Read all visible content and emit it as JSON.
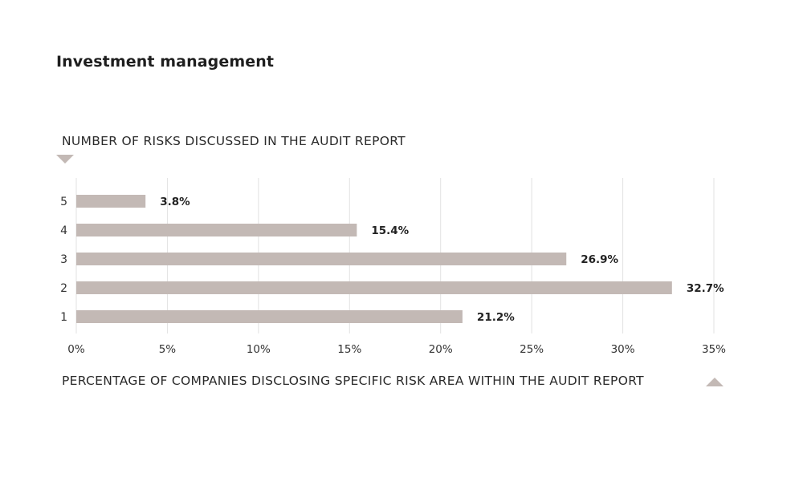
{
  "title": "Investment management",
  "chart_data": {
    "type": "bar",
    "orientation": "horizontal",
    "title": "Investment management",
    "ylabel": "NUMBER OF RISKS DISCUSSED IN THE AUDIT REPORT",
    "xlabel": "PERCENTAGE OF COMPANIES DISCLOSING SPECIFIC RISK AREA WITHIN THE AUDIT REPORT",
    "categories": [
      "5",
      "4",
      "3",
      "2",
      "1"
    ],
    "values": [
      3.8,
      15.4,
      26.9,
      32.7,
      21.2
    ],
    "value_labels": [
      "3.8%",
      "15.4%",
      "26.9%",
      "32.7%",
      "21.2%"
    ],
    "xlim": [
      0,
      35
    ],
    "xticks": [
      0,
      5,
      10,
      15,
      20,
      25,
      30,
      35
    ],
    "xtick_labels": [
      "0%",
      "5%",
      "10%",
      "15%",
      "20%",
      "25%",
      "30%",
      "35%"
    ],
    "grid": true,
    "bar_color": "#c3b9b5",
    "grid_color": "#e2e2e2"
  }
}
